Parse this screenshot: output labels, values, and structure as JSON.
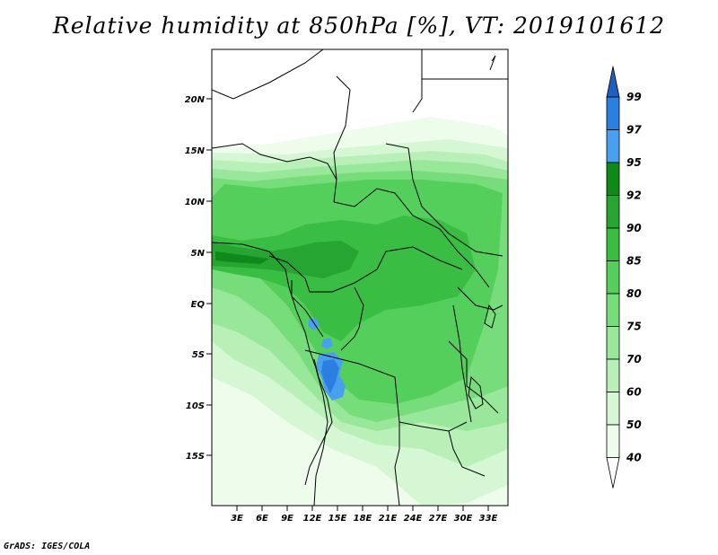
{
  "title": "Relative humidity at 850hPa [%], VT: 2019101612",
  "credit": "GrADS: IGES/COLA",
  "map": {
    "lat_labels": [
      "20N",
      "15N",
      "10N",
      "5N",
      "EQ",
      "5S",
      "10S",
      "15S"
    ],
    "lon_labels": [
      "3E",
      "6E",
      "9E",
      "12E",
      "15E",
      "18E",
      "21E",
      "24E",
      "27E",
      "30E",
      "33E"
    ]
  },
  "colorbar": {
    "labels": [
      "99",
      "97",
      "95",
      "92",
      "90",
      "85",
      "80",
      "75",
      "70",
      "60",
      "50",
      "40"
    ],
    "colors": [
      "#1f5fbf",
      "#2a7fe0",
      "#4aa0f0",
      "#0f8a1a",
      "#27a532",
      "#39bd43",
      "#55cf5b",
      "#77dc7a",
      "#99e79a",
      "#b9f0b8",
      "#d6f7d4",
      "#eefcec"
    ]
  }
}
